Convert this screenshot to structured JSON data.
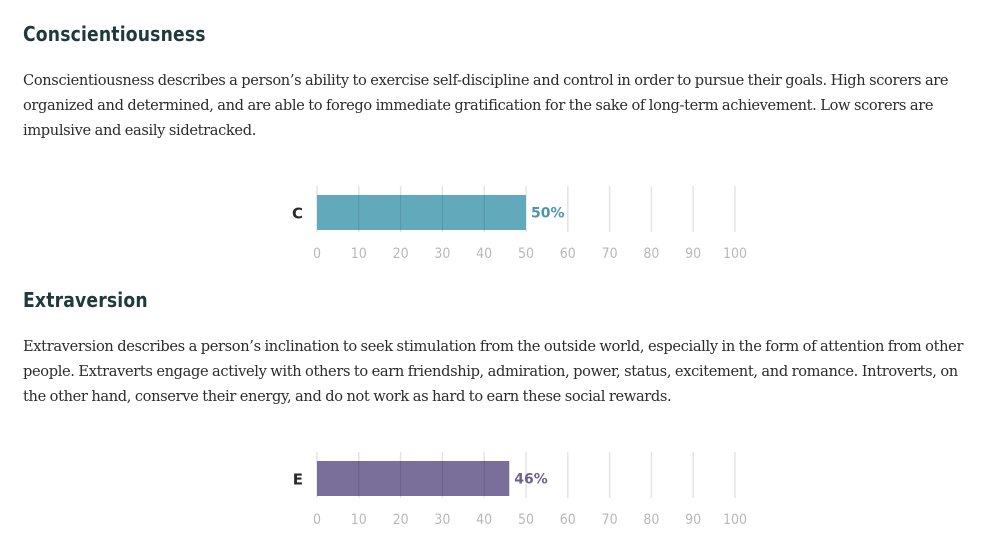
{
  "sections": [
    {
      "heading": "Conscientiousness",
      "description": "Conscientiousness describes a person’s ability to exercise self-discipline and control in order to pursue their goals. High scorers are organized and determined, and are able to forego immediate gratification for the sake of long-term achievement. Low scorers are impulsive and easily sidetracked."
    },
    {
      "heading": "Extraversion",
      "description": "Extraversion describes a person’s inclination to seek stimulation from the outside world, especially in the form of attention from other people. Extraverts engage actively with others to earn friendship, admiration, power, status, excitement, and romance. Introverts, on the other hand, conserve their energy, and do not work as hard to earn these social rewards."
    }
  ],
  "chart_data": [
    {
      "type": "bar",
      "categories": [
        "C"
      ],
      "values": [
        50
      ],
      "value_label": "50%",
      "xlim": [
        0,
        100
      ],
      "ticks": [
        0,
        10,
        20,
        30,
        40,
        50,
        60,
        70,
        80,
        90,
        100
      ],
      "bar_color": "#63a9bc",
      "label_color": "#4f95a8"
    },
    {
      "type": "bar",
      "categories": [
        "E"
      ],
      "values": [
        46
      ],
      "value_label": "46%",
      "xlim": [
        0,
        100
      ],
      "ticks": [
        0,
        10,
        20,
        30,
        40,
        50,
        60,
        70,
        80,
        90,
        100
      ],
      "bar_color": "#7a6e9a",
      "label_color": "#6d628c"
    }
  ],
  "colors": {
    "heading": "#1f3a3d",
    "body_text": "#2b2b2b",
    "grid": "#e4e4e4",
    "tick_text": "#b8b8b8"
  }
}
